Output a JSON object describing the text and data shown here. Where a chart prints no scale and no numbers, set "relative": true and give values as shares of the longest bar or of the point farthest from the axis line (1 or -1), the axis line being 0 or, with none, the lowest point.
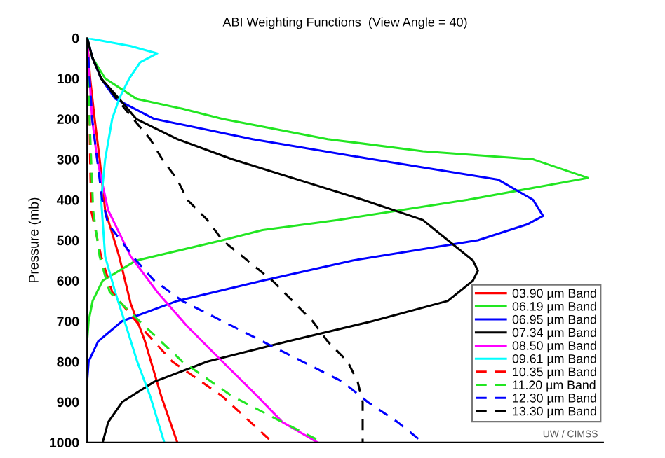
{
  "chart_data": {
    "type": "line",
    "orientation": "horizontal",
    "relative": true,
    "title": "ABI Weighting Functions  (View Angle = 40)",
    "ylabel": "Pressure (mb)",
    "ylim": [
      1000,
      0
    ],
    "yticks": [
      0,
      100,
      200,
      300,
      400,
      500,
      600,
      700,
      800,
      900,
      1000
    ],
    "grid": false,
    "legend": "bottom right",
    "annotations": [
      "UW / CIMSS"
    ],
    "series": [
      {
        "name": "03.90 µm Band",
        "color": "#ff0000",
        "line_style": "solid",
        "x": [
          0,
          100,
          200,
          300,
          426,
          540,
          657,
          748,
          886,
          1000
        ],
        "values": [
          0,
          0.006,
          0.015,
          0.025,
          0.036,
          0.064,
          0.087,
          0.115,
          0.148,
          0.18
        ]
      },
      {
        "name": "06.19 µm Band",
        "color": "#22e622",
        "line_style": "solid",
        "x": [
          0,
          50,
          100,
          150,
          175,
          200,
          250,
          280,
          300,
          346,
          400,
          450,
          475,
          500,
          550,
          600,
          650,
          700,
          750
        ],
        "values": [
          0,
          0.011,
          0.036,
          0.098,
          0.19,
          0.27,
          0.48,
          0.67,
          0.89,
          1.0,
          0.76,
          0.5,
          0.35,
          0.27,
          0.098,
          0.031,
          0.011,
          0.003,
          0
        ]
      },
      {
        "name": "06.95 µm Band",
        "color": "#0000ff",
        "line_style": "solid",
        "x": [
          0,
          50,
          100,
          150,
          200,
          250,
          300,
          350,
          400,
          440,
          460,
          500,
          550,
          600,
          650,
          700,
          750,
          800,
          850
        ],
        "values": [
          0,
          0.011,
          0.028,
          0.056,
          0.134,
          0.33,
          0.57,
          0.82,
          0.89,
          0.91,
          0.88,
          0.78,
          0.53,
          0.35,
          0.18,
          0.07,
          0.022,
          0.003,
          0
        ]
      },
      {
        "name": "07.34 µm Band",
        "color": "#000000",
        "line_style": "solid",
        "x": [
          0,
          50,
          100,
          150,
          200,
          250,
          300,
          350,
          400,
          450,
          500,
          550,
          575,
          600,
          650,
          700,
          750,
          800,
          850,
          900,
          950,
          1000
        ],
        "values": [
          0,
          0.011,
          0.028,
          0.064,
          0.098,
          0.18,
          0.29,
          0.42,
          0.55,
          0.67,
          0.72,
          0.77,
          0.78,
          0.77,
          0.72,
          0.57,
          0.4,
          0.24,
          0.134,
          0.07,
          0.042,
          0.031
        ]
      },
      {
        "name": "08.50 µm Band",
        "color": "#ff00ff",
        "line_style": "solid",
        "x": [
          0,
          100,
          200,
          300,
          426,
          540,
          628,
          713,
          800,
          886,
          950,
          1000
        ],
        "values": [
          0,
          0.005,
          0.01,
          0.02,
          0.042,
          0.087,
          0.14,
          0.2,
          0.27,
          0.34,
          0.39,
          0.46
        ]
      },
      {
        "name": "09.61 µm Band",
        "color": "#00ffff",
        "line_style": "solid",
        "x": [
          0,
          20,
          38,
          60,
          100,
          150,
          200,
          300,
          400,
          540,
          628,
          713,
          800,
          886,
          1000
        ],
        "values": [
          0,
          0.087,
          0.14,
          0.106,
          0.084,
          0.064,
          0.05,
          0.036,
          0.028,
          0.036,
          0.056,
          0.078,
          0.1,
          0.126,
          0.154
        ]
      },
      {
        "name": "10.35 µm Band",
        "color": "#ff0000",
        "line_style": "dashed",
        "x": [
          0,
          100,
          200,
          300,
          426,
          540,
          628,
          713,
          800,
          886,
          1000
        ],
        "values": [
          0,
          0.003,
          0.005,
          0.006,
          0.008,
          0.028,
          0.05,
          0.106,
          0.17,
          0.27,
          0.37
        ]
      },
      {
        "name": "11.20 µm Band",
        "color": "#22e622",
        "line_style": "dashed",
        "x": [
          0,
          100,
          200,
          300,
          426,
          540,
          628,
          702,
          800,
          886,
          950,
          1000
        ],
        "values": [
          0,
          0.003,
          0.005,
          0.008,
          0.012,
          0.025,
          0.045,
          0.106,
          0.19,
          0.29,
          0.39,
          0.47
        ]
      },
      {
        "name": "12.30 µm Band",
        "color": "#0000ff",
        "line_style": "dashed",
        "x": [
          0,
          100,
          200,
          300,
          400,
          460,
          550,
          600,
          650,
          700,
          750,
          800,
          850,
          900,
          950,
          1000
        ],
        "values": [
          0,
          0.005,
          0.01,
          0.02,
          0.03,
          0.042,
          0.098,
          0.134,
          0.19,
          0.27,
          0.35,
          0.43,
          0.51,
          0.56,
          0.62,
          0.67
        ]
      },
      {
        "name": "13.30 µm Band",
        "color": "#000000",
        "line_style": "dashed",
        "x": [
          0,
          50,
          100,
          150,
          200,
          250,
          300,
          350,
          400,
          450,
          500,
          550,
          600,
          650,
          700,
          750,
          800,
          850,
          900,
          950,
          1000
        ],
        "values": [
          0,
          0.011,
          0.028,
          0.059,
          0.092,
          0.126,
          0.15,
          0.18,
          0.2,
          0.24,
          0.27,
          0.32,
          0.37,
          0.41,
          0.45,
          0.48,
          0.52,
          0.54,
          0.55,
          0.55,
          0.55
        ]
      }
    ]
  }
}
